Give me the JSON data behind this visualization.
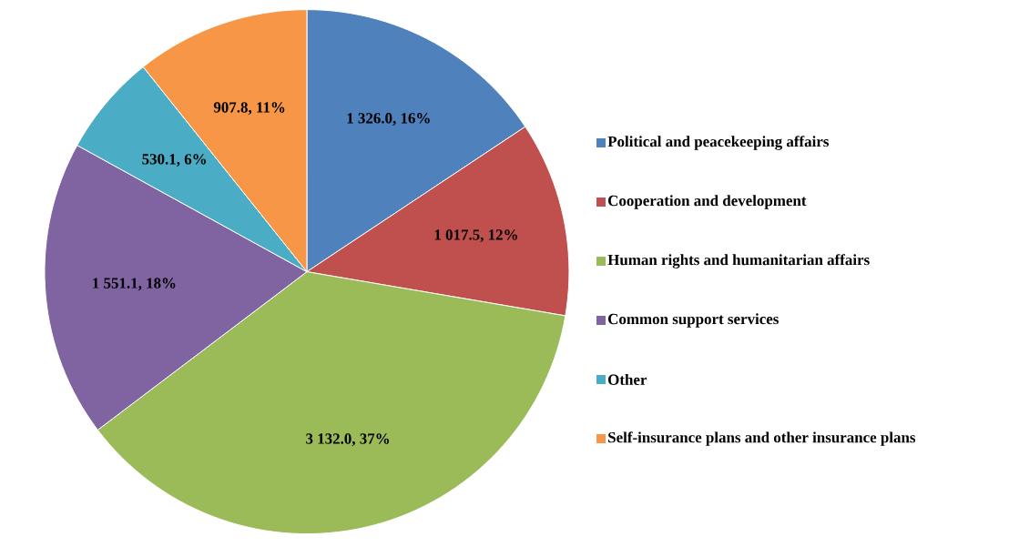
{
  "chart_data": {
    "type": "pie",
    "categories": [
      "Political and peacekeeping affairs",
      "Cooperation and development",
      "Human rights and humanitarian affairs",
      "Common support services",
      "Other",
      "Self-insurance plans and other insurance plans"
    ],
    "values": [
      1326.0,
      1017.5,
      3132.0,
      1551.1,
      530.1,
      907.8
    ],
    "value_labels": [
      "1 326.0, 16%",
      "1 017.5, 12%",
      "3 132.0, 37%",
      "1 551.1, 18%",
      "530.1, 6%",
      "907.8,  11%"
    ],
    "colors": [
      "#4f81bd",
      "#c0504d",
      "#9bbb59",
      "#8064a2",
      "#4bacc6",
      "#f79646"
    ],
    "legend": "right"
  }
}
